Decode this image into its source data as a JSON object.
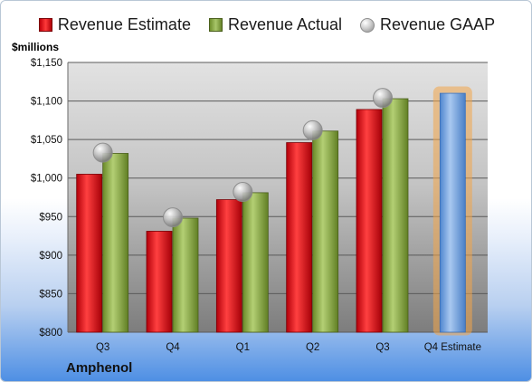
{
  "chart_data": {
    "type": "bar",
    "ylabel": "$millions",
    "company": "Amphenol",
    "categories": [
      "Q3",
      "Q4",
      "Q1",
      "Q2",
      "Q3",
      "Q4 Estimate"
    ],
    "ylim": [
      800,
      1150
    ],
    "yticks": [
      "$800",
      "$850",
      "$900",
      "$950",
      "$1,000",
      "$1,050",
      "$1,100",
      "$1,150"
    ],
    "ytick_values": [
      800,
      850,
      900,
      950,
      1000,
      1050,
      1100,
      1150
    ],
    "grid": true,
    "legend_position": "top",
    "series": [
      {
        "name": "Revenue Estimate",
        "kind": "bar",
        "color": "#d01010",
        "values": [
          1005,
          931,
          972,
          1046,
          1089,
          null
        ]
      },
      {
        "name": "Revenue Actual",
        "kind": "bar",
        "color": "#8db048",
        "values": [
          1032,
          948,
          981,
          1061,
          1103,
          null
        ]
      },
      {
        "name": "Revenue GAAP",
        "kind": "marker",
        "color": "#b4b4b4",
        "values": [
          1033,
          949,
          982,
          1062,
          1104,
          null
        ]
      }
    ],
    "forecast": {
      "category": "Q4 Estimate",
      "value": 1110,
      "color": "#6fa0dc",
      "glow": "#f3a64a"
    }
  }
}
